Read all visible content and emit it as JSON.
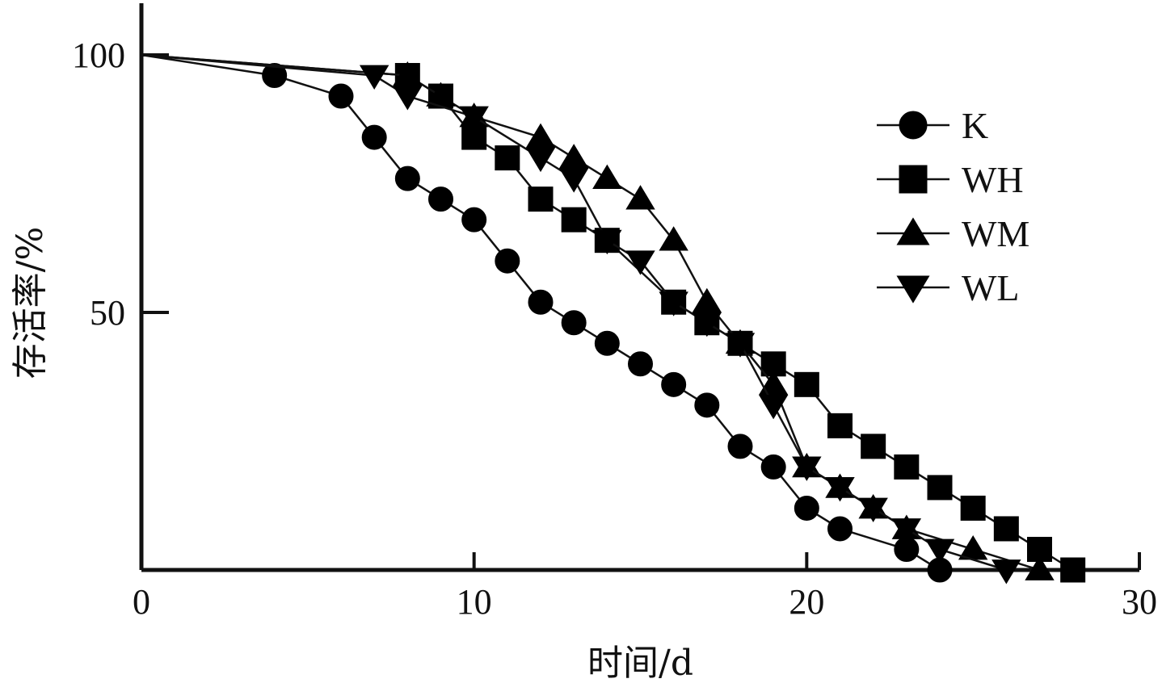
{
  "chart_data": {
    "type": "line",
    "title": "",
    "xlabel": "时间/d",
    "ylabel": "存活率/%",
    "xlim": [
      0,
      30
    ],
    "ylim": [
      0,
      110
    ],
    "x_ticks": [
      0,
      10,
      20,
      30
    ],
    "y_ticks": [
      50,
      100
    ],
    "x_tick_labels": [
      "0",
      "10",
      "20",
      "30"
    ],
    "y_tick_labels": [
      "50",
      "100"
    ],
    "grid": false,
    "legend_position": "top-right",
    "series": [
      {
        "name": "K",
        "marker": "circle",
        "points": [
          [
            0,
            100
          ],
          [
            4,
            96
          ],
          [
            6,
            92
          ],
          [
            7,
            84
          ],
          [
            8,
            76
          ],
          [
            9,
            72
          ],
          [
            10,
            68
          ],
          [
            11,
            60
          ],
          [
            12,
            52
          ],
          [
            13,
            48
          ],
          [
            14,
            44
          ],
          [
            15,
            40
          ],
          [
            16,
            36
          ],
          [
            17,
            32
          ],
          [
            18,
            24
          ],
          [
            19,
            20
          ],
          [
            20,
            12
          ],
          [
            21,
            8
          ],
          [
            23,
            4
          ],
          [
            24,
            0
          ]
        ]
      },
      {
        "name": "WH",
        "marker": "square",
        "points": [
          [
            0,
            100
          ],
          [
            8,
            96
          ],
          [
            9,
            92
          ],
          [
            10,
            84
          ],
          [
            11,
            80
          ],
          [
            12,
            72
          ],
          [
            13,
            68
          ],
          [
            14,
            64
          ],
          [
            16,
            52
          ],
          [
            17,
            48
          ],
          [
            18,
            44
          ],
          [
            19,
            40
          ],
          [
            20,
            36
          ],
          [
            21,
            28
          ],
          [
            22,
            24
          ],
          [
            23,
            20
          ],
          [
            24,
            16
          ],
          [
            25,
            12
          ],
          [
            26,
            8
          ],
          [
            27,
            4
          ],
          [
            28,
            0
          ]
        ]
      },
      {
        "name": "WM",
        "marker": "triangle-up",
        "points": [
          [
            0,
            100
          ],
          [
            8,
            96
          ],
          [
            9,
            92
          ],
          [
            10,
            88
          ],
          [
            12,
            84
          ],
          [
            13,
            80
          ],
          [
            14,
            76
          ],
          [
            15,
            72
          ],
          [
            16,
            64
          ],
          [
            17,
            52
          ],
          [
            18,
            44
          ],
          [
            19,
            36
          ],
          [
            20,
            20
          ],
          [
            21,
            16
          ],
          [
            22,
            12
          ],
          [
            23,
            8
          ],
          [
            25,
            4
          ],
          [
            27,
            0
          ]
        ]
      },
      {
        "name": "WL",
        "marker": "triangle-down",
        "points": [
          [
            0,
            100
          ],
          [
            7,
            96
          ],
          [
            8,
            92
          ],
          [
            10,
            88
          ],
          [
            12,
            80
          ],
          [
            13,
            76
          ],
          [
            14,
            64
          ],
          [
            15,
            60
          ],
          [
            16,
            52
          ],
          [
            17,
            48
          ],
          [
            18,
            44
          ],
          [
            19,
            32
          ],
          [
            20,
            20
          ],
          [
            21,
            16
          ],
          [
            22,
            12
          ],
          [
            23,
            8
          ],
          [
            24,
            4
          ],
          [
            26,
            0
          ]
        ]
      }
    ]
  }
}
